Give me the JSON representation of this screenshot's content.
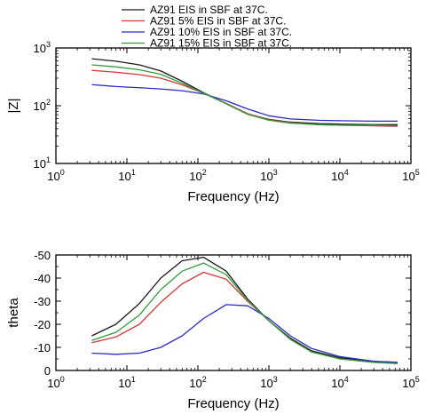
{
  "chart_data": [
    {
      "type": "line",
      "xlabel": "Frequency (Hz)",
      "ylabel": "|Z|",
      "x_scale": "log",
      "y_scale": "log",
      "xlim": [
        1,
        100000
      ],
      "ylim": [
        10,
        1000
      ],
      "grid": false,
      "legend_position": "top",
      "x_ticks": [
        {
          "value": 1,
          "base": "10",
          "exp": "0"
        },
        {
          "value": 10,
          "base": "10",
          "exp": "1"
        },
        {
          "value": 100,
          "base": "10",
          "exp": "2"
        },
        {
          "value": 1000,
          "base": "10",
          "exp": "3"
        },
        {
          "value": 10000,
          "base": "10",
          "exp": "4"
        },
        {
          "value": 100000,
          "base": "10",
          "exp": "5"
        }
      ],
      "y_ticks": [
        {
          "value": 10,
          "base": "10",
          "exp": "1"
        },
        {
          "value": 100,
          "base": "10",
          "exp": "2"
        },
        {
          "value": 1000,
          "base": "10",
          "exp": "3"
        }
      ],
      "series": [
        {
          "name": "AZ91  EIS in SBF at 37C.",
          "color": "#1a1a1a",
          "x": [
            3.2,
            7,
            15,
            30,
            60,
            120,
            250,
            500,
            1000,
            2000,
            5000,
            10000,
            30000,
            65000
          ],
          "y": [
            650,
            590,
            510,
            400,
            265,
            168,
            108,
            72,
            58,
            52,
            49,
            48,
            47,
            47
          ]
        },
        {
          "name": "AZ91 5%  EIS in SBF at 37C.",
          "color": "#d23a3a",
          "x": [
            3.2,
            7,
            15,
            30,
            60,
            120,
            250,
            500,
            1000,
            2000,
            5000,
            10000,
            30000,
            65000
          ],
          "y": [
            410,
            380,
            345,
            300,
            230,
            165,
            110,
            73,
            57,
            51,
            47,
            46,
            45,
            44
          ]
        },
        {
          "name": "AZ91 10%  EIS in SBF at 37C.",
          "color": "#2a2ac8",
          "x": [
            3.2,
            7,
            15,
            30,
            60,
            120,
            250,
            500,
            1000,
            2000,
            5000,
            10000,
            30000,
            65000
          ],
          "y": [
            232,
            215,
            205,
            195,
            182,
            160,
            122,
            88,
            67,
            59,
            56,
            55,
            54,
            54
          ]
        },
        {
          "name": "AZ91 15% EIS in SBF at 37C.",
          "color": "#2e9e3a",
          "x": [
            3.2,
            7,
            15,
            30,
            60,
            120,
            250,
            500,
            1000,
            2000,
            5000,
            10000,
            30000,
            65000
          ],
          "y": [
            510,
            470,
            420,
            350,
            245,
            165,
            108,
            71,
            56,
            50,
            47,
            46,
            46,
            45
          ]
        }
      ]
    },
    {
      "type": "line",
      "xlabel": "Frequency (Hz)",
      "ylabel": "theta",
      "x_scale": "log",
      "y_scale": "linear",
      "y_inverted": true,
      "xlim": [
        1,
        100000
      ],
      "ylim": [
        0,
        -50
      ],
      "grid": false,
      "x_ticks": [
        {
          "value": 1,
          "base": "10",
          "exp": "0"
        },
        {
          "value": 10,
          "base": "10",
          "exp": "1"
        },
        {
          "value": 100,
          "base": "10",
          "exp": "2"
        },
        {
          "value": 1000,
          "base": "10",
          "exp": "3"
        },
        {
          "value": 10000,
          "base": "10",
          "exp": "4"
        },
        {
          "value": 100000,
          "base": "10",
          "exp": "5"
        }
      ],
      "y_ticks": [
        {
          "value": 0,
          "label": "0"
        },
        {
          "value": -10,
          "label": "-10"
        },
        {
          "value": -20,
          "label": "-20"
        },
        {
          "value": -30,
          "label": "-30"
        },
        {
          "value": -40,
          "label": "-40"
        },
        {
          "value": -50,
          "label": "-50"
        }
      ],
      "series": [
        {
          "name": "AZ91  EIS in SBF at 37C.",
          "color": "#1a1a1a",
          "x": [
            3.2,
            7,
            15,
            30,
            60,
            120,
            250,
            500,
            1000,
            2000,
            4000,
            10000,
            30000,
            65000
          ],
          "y": [
            -15,
            -20,
            -29,
            -40,
            -47.5,
            -49,
            -43,
            -31,
            -21.5,
            -14,
            -8.5,
            -5.5,
            -4,
            -3.5
          ]
        },
        {
          "name": "AZ91 5%  EIS in SBF at 37C.",
          "color": "#d23a3a",
          "x": [
            3.2,
            7,
            15,
            30,
            60,
            120,
            250,
            500,
            1000,
            2000,
            4000,
            10000,
            30000,
            65000
          ],
          "y": [
            -12,
            -14.5,
            -20,
            -29.5,
            -37.5,
            -42.5,
            -39.5,
            -30,
            -21.5,
            -13.5,
            -8,
            -5,
            -3.5,
            -3
          ]
        },
        {
          "name": "AZ91 10%  EIS in SBF at 37C.",
          "color": "#2a2ac8",
          "x": [
            3.2,
            7,
            15,
            30,
            60,
            120,
            250,
            500,
            1000,
            2000,
            4000,
            10000,
            30000,
            65000
          ],
          "y": [
            -7.5,
            -7,
            -7.5,
            -10,
            -15,
            -22.5,
            -28.5,
            -28,
            -22.5,
            -15,
            -9.5,
            -6,
            -4,
            -3.5
          ]
        },
        {
          "name": "AZ91 15% EIS in SBF at 37C.",
          "color": "#2e9e3a",
          "x": [
            3.2,
            7,
            15,
            30,
            60,
            120,
            250,
            500,
            1000,
            2000,
            4000,
            10000,
            30000,
            65000
          ],
          "y": [
            -13,
            -16.5,
            -24,
            -35,
            -43,
            -46.5,
            -41.5,
            -30.5,
            -21.5,
            -13.5,
            -8,
            -5,
            -3.5,
            -3
          ]
        }
      ]
    }
  ]
}
